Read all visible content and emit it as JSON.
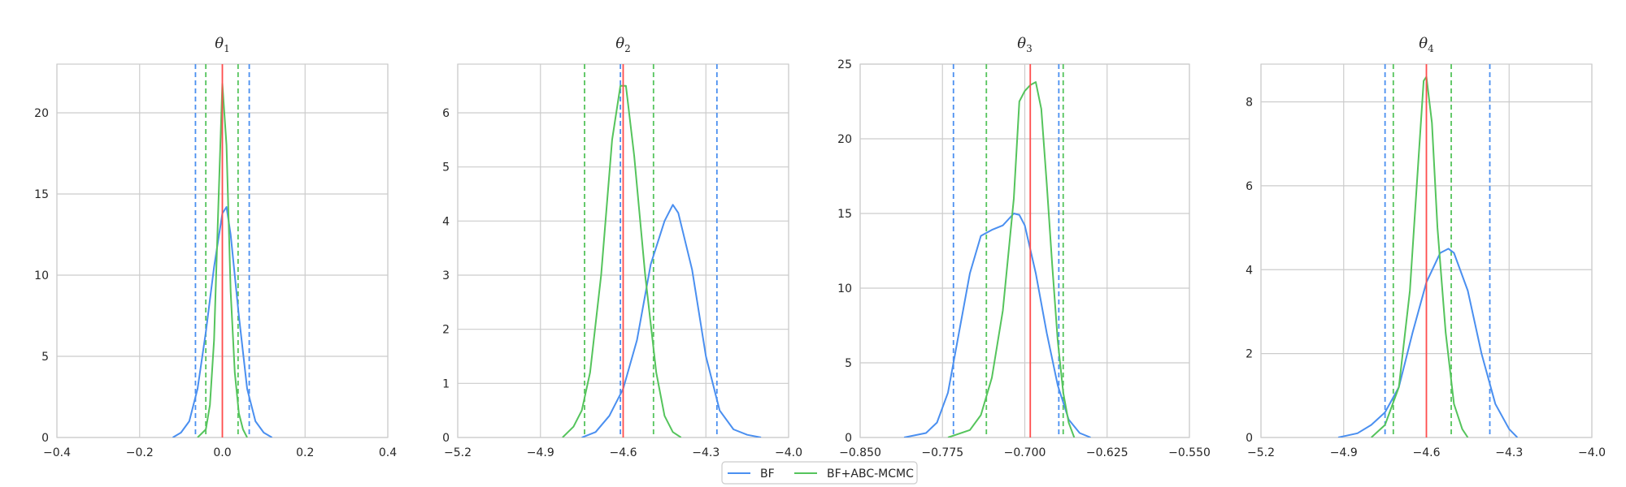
{
  "colors": {
    "bf": "#4a8ff0",
    "abc": "#55c45c",
    "true_value": "#ff4d4d",
    "grid": "#cccccc",
    "frame": "#cccccc"
  },
  "legend": {
    "placement": "bottom-center",
    "entries": [
      {
        "label": "BF",
        "color": "#4a8ff0"
      },
      {
        "label": "BF+ABC-MCMC",
        "color": "#55c45c"
      }
    ]
  },
  "chart_data": [
    {
      "type": "line",
      "title_symbol": "θ",
      "title_subscript": "1",
      "xlim": [
        -0.4,
        0.4
      ],
      "ylim": [
        0,
        23
      ],
      "xticks": [
        -0.4,
        -0.2,
        0.0,
        0.2,
        0.4
      ],
      "xtick_labels": [
        "−0.4",
        "−0.2",
        "0.0",
        "0.2",
        "0.4"
      ],
      "yticks": [
        0,
        5,
        10,
        15,
        20
      ],
      "ytick_labels": [
        "0",
        "5",
        "10",
        "15",
        "20"
      ],
      "grid": true,
      "true_value": 0.0,
      "intervals": {
        "bf": [
          -0.065,
          0.065
        ],
        "abc": [
          -0.04,
          0.038
        ]
      },
      "series": [
        {
          "name": "BF",
          "key": "bf",
          "x": [
            -0.12,
            -0.1,
            -0.08,
            -0.06,
            -0.04,
            -0.02,
            0.0,
            0.01,
            0.02,
            0.04,
            0.06,
            0.08,
            0.1,
            0.12
          ],
          "y": [
            0,
            0.3,
            1.0,
            3.0,
            6.5,
            10.5,
            13.8,
            14.2,
            12.5,
            7.5,
            3.0,
            1.0,
            0.3,
            0
          ]
        },
        {
          "name": "BF+ABC-MCMC",
          "key": "abc",
          "x": [
            -0.06,
            -0.04,
            -0.03,
            -0.02,
            -0.01,
            0.0,
            0.01,
            0.02,
            0.03,
            0.04,
            0.05,
            0.06
          ],
          "y": [
            0,
            0.5,
            2.0,
            6.0,
            14.0,
            21.8,
            18.0,
            9.0,
            4.0,
            1.5,
            0.5,
            0
          ]
        }
      ]
    },
    {
      "type": "line",
      "title_symbol": "θ",
      "title_subscript": "2",
      "xlim": [
        -5.2,
        -4.0
      ],
      "ylim": [
        0,
        6.9
      ],
      "xticks": [
        -5.2,
        -4.9,
        -4.6,
        -4.3,
        -4.0
      ],
      "xtick_labels": [
        "−5.2",
        "−4.9",
        "−4.6",
        "−4.3",
        "−4.0"
      ],
      "yticks": [
        0,
        1,
        2,
        3,
        4,
        5,
        6
      ],
      "ytick_labels": [
        "0",
        "1",
        "2",
        "3",
        "4",
        "5",
        "6"
      ],
      "grid": true,
      "true_value": -4.6,
      "intervals": {
        "bf": [
          -4.61,
          -4.26
        ],
        "abc": [
          -4.74,
          -4.49
        ]
      },
      "series": [
        {
          "name": "BF",
          "key": "bf",
          "x": [
            -4.75,
            -4.7,
            -4.65,
            -4.6,
            -4.55,
            -4.5,
            -4.45,
            -4.42,
            -4.4,
            -4.35,
            -4.3,
            -4.25,
            -4.2,
            -4.15,
            -4.1
          ],
          "y": [
            0,
            0.1,
            0.4,
            0.9,
            1.8,
            3.2,
            4.0,
            4.3,
            4.15,
            3.1,
            1.5,
            0.5,
            0.15,
            0.05,
            0
          ]
        },
        {
          "name": "BF+ABC-MCMC",
          "key": "abc",
          "x": [
            -4.82,
            -4.78,
            -4.75,
            -4.72,
            -4.68,
            -4.64,
            -4.61,
            -4.59,
            -4.56,
            -4.52,
            -4.48,
            -4.45,
            -4.42,
            -4.39
          ],
          "y": [
            0,
            0.2,
            0.5,
            1.2,
            3.0,
            5.5,
            6.5,
            6.5,
            5.2,
            3.0,
            1.2,
            0.4,
            0.1,
            0
          ]
        }
      ]
    },
    {
      "type": "line",
      "title_symbol": "θ",
      "title_subscript": "3",
      "xlim": [
        -0.85,
        -0.55
      ],
      "ylim": [
        0,
        25
      ],
      "xticks": [
        -0.85,
        -0.775,
        -0.7,
        -0.625,
        -0.55
      ],
      "xtick_labels": [
        "−0.850",
        "−0.775",
        "−0.700",
        "−0.625",
        "−0.550"
      ],
      "yticks": [
        0,
        5,
        10,
        15,
        20,
        25
      ],
      "ytick_labels": [
        "0",
        "5",
        "10",
        "15",
        "20",
        "25"
      ],
      "grid": true,
      "true_value": -0.695,
      "intervals": {
        "bf": [
          -0.765,
          -0.669
        ],
        "abc": [
          -0.735,
          -0.665
        ]
      },
      "series": [
        {
          "name": "BF",
          "key": "bf",
          "x": [
            -0.81,
            -0.79,
            -0.78,
            -0.77,
            -0.76,
            -0.75,
            -0.74,
            -0.73,
            -0.72,
            -0.71,
            -0.705,
            -0.7,
            -0.69,
            -0.68,
            -0.67,
            -0.66,
            -0.65,
            -0.64
          ],
          "y": [
            0,
            0.3,
            1.0,
            3.0,
            7.0,
            11.0,
            13.5,
            13.9,
            14.2,
            15.0,
            14.9,
            14.2,
            11.0,
            7.0,
            3.5,
            1.2,
            0.3,
            0
          ]
        },
        {
          "name": "BF+ABC-MCMC",
          "key": "abc",
          "x": [
            -0.77,
            -0.75,
            -0.74,
            -0.73,
            -0.72,
            -0.71,
            -0.705,
            -0.7,
            -0.695,
            -0.69,
            -0.685,
            -0.68,
            -0.675,
            -0.67,
            -0.665,
            -0.66,
            -0.655
          ],
          "y": [
            0,
            0.5,
            1.5,
            4.0,
            8.5,
            16.0,
            22.5,
            23.2,
            23.6,
            23.8,
            22.0,
            17.0,
            11.5,
            6.5,
            3.0,
            1.0,
            0
          ]
        }
      ]
    },
    {
      "type": "line",
      "title_symbol": "θ",
      "title_subscript": "4",
      "xlim": [
        -5.2,
        -4.0
      ],
      "ylim": [
        0,
        8.9
      ],
      "xticks": [
        -5.2,
        -4.9,
        -4.6,
        -4.3,
        -4.0
      ],
      "xtick_labels": [
        "−5.2",
        "−4.9",
        "−4.6",
        "−4.3",
        "−4.0"
      ],
      "yticks": [
        0,
        2,
        4,
        6,
        8
      ],
      "ytick_labels": [
        "0",
        "2",
        "4",
        "6",
        "8"
      ],
      "grid": true,
      "true_value": -4.6,
      "intervals": {
        "bf": [
          -4.75,
          -4.37
        ],
        "abc": [
          -4.72,
          -4.51
        ]
      },
      "series": [
        {
          "name": "BF",
          "key": "bf",
          "x": [
            -4.92,
            -4.85,
            -4.8,
            -4.75,
            -4.7,
            -4.65,
            -4.6,
            -4.55,
            -4.52,
            -4.5,
            -4.45,
            -4.4,
            -4.35,
            -4.3,
            -4.27
          ],
          "y": [
            0,
            0.1,
            0.3,
            0.6,
            1.2,
            2.5,
            3.7,
            4.4,
            4.5,
            4.4,
            3.5,
            2.0,
            0.8,
            0.2,
            0
          ]
        },
        {
          "name": "BF+ABC-MCMC",
          "key": "abc",
          "x": [
            -4.8,
            -4.75,
            -4.7,
            -4.66,
            -4.63,
            -4.61,
            -4.6,
            -4.58,
            -4.56,
            -4.53,
            -4.5,
            -4.47,
            -4.45
          ],
          "y": [
            0,
            0.3,
            1.2,
            3.5,
            6.5,
            8.5,
            8.6,
            7.5,
            5.0,
            2.5,
            0.8,
            0.2,
            0
          ]
        }
      ]
    }
  ]
}
